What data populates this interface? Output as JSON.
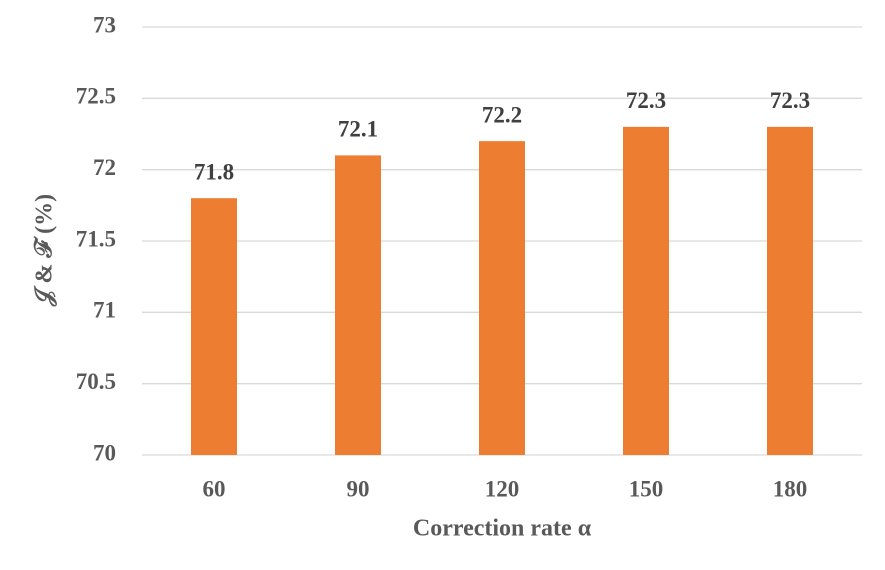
{
  "chart_data": {
    "type": "bar",
    "x_label": "Correction rate α",
    "y_label": "𝒥 & ℱ  (%)",
    "categories": [
      "60",
      "90",
      "120",
      "150",
      "180"
    ],
    "values": [
      71.8,
      72.1,
      72.2,
      72.3,
      72.3
    ],
    "color": "#ed7d31",
    "ylim": [
      70,
      73
    ],
    "yticks": [
      70,
      70.5,
      71,
      71.5,
      72,
      72.5,
      73
    ],
    "grid": true
  }
}
